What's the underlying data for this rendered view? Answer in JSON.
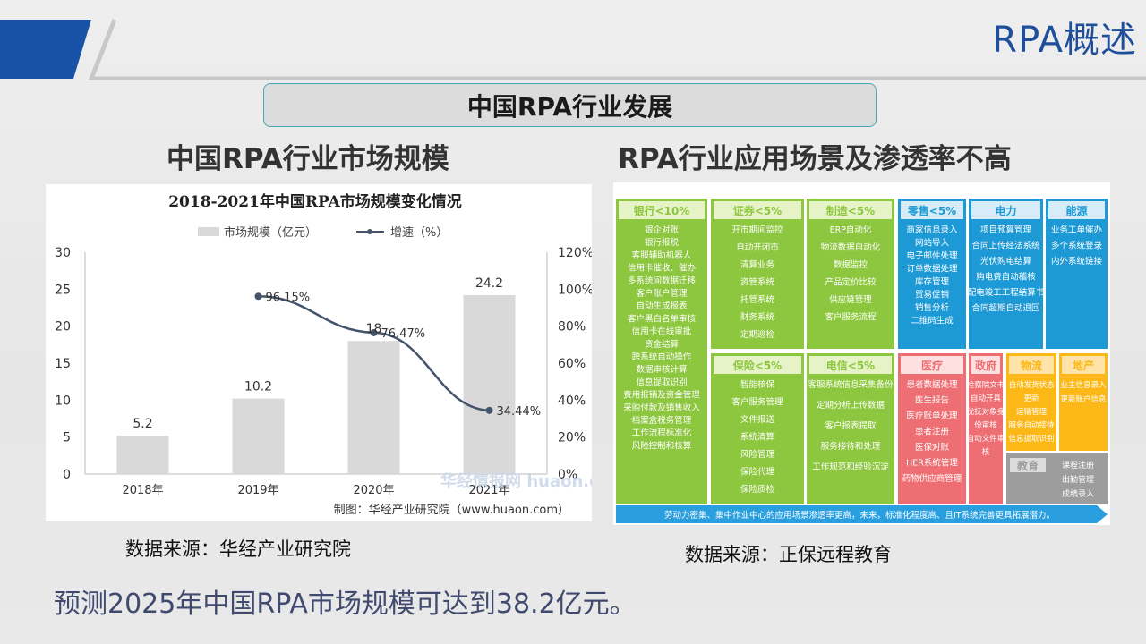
{
  "header": {
    "title": "RPA概述"
  },
  "section": {
    "label": "中国RPA行业发展"
  },
  "left": {
    "subtitle": "中国RPA行业市场规模",
    "source": "数据来源：华经产业研究院"
  },
  "right": {
    "subtitle": "RPA行业应用场景及渗透率不高",
    "source": "数据来源：正保远程教育"
  },
  "forecast": "预测2025年中国RPA市场规模可达到38.2亿元。",
  "chart_data": {
    "type": "bar",
    "title": "2018-2021年中国RPA市场规模变化情况",
    "categories": [
      "2018年",
      "2019年",
      "2020年",
      "2021年"
    ],
    "series": [
      {
        "name": "市场规模（亿元）",
        "type": "bar",
        "values": [
          5.2,
          10.2,
          18,
          24.2
        ],
        "labels": [
          "5.2",
          "10.2",
          "18",
          "24.2"
        ]
      },
      {
        "name": "增速（%）",
        "type": "line",
        "axis": "right",
        "values": [
          null,
          96.15,
          76.47,
          34.44
        ],
        "labels": [
          "",
          "96.15%",
          "76.47%",
          "34.44%"
        ]
      }
    ],
    "ylim": [
      0,
      30
    ],
    "yticks": [
      "0",
      "5",
      "10",
      "15",
      "20",
      "25",
      "30"
    ],
    "y2lim": [
      0,
      120
    ],
    "y2ticks": [
      "0%",
      "20%",
      "40%",
      "60%",
      "80%",
      "100%",
      "120%"
    ],
    "legend_position": "top-center",
    "credit": "制图：华经产业研究院（www.huaon.com）",
    "watermark": "华经情报网 huaon.com",
    "colors": {
      "bar": "#d9d9d9",
      "line": "#44546a"
    }
  },
  "scenarios": {
    "columns": [
      {
        "header": "银行<10%",
        "items": [
          "银企对账",
          "银行报税",
          "客服辅助机器人",
          "信用卡催收、催办",
          "多系统间数据迁移",
          "客户账户管理",
          "自动生成报表",
          "客户黑白名单审核",
          "信用卡在线审批",
          "资金结算",
          "跨系统自动操作",
          "数据审核计算",
          "信息提取识别",
          "费用报销及资金管理",
          "采购付款及销售收入",
          "档案盒税务管理",
          "工作流程标准化",
          "风险控制和核算"
        ]
      },
      {
        "header": "证券<5%",
        "items": [
          "开市期间监控",
          "自动开闭市",
          "清算业务",
          "资管系统",
          "托管系统",
          "财务系统",
          "定期巡检"
        ]
      },
      {
        "header": "制造<5%",
        "items": [
          "ERP自动化",
          "物流数据自动化",
          "数据监控",
          "产品定价比较",
          "供应链管理",
          "客户服务流程"
        ]
      },
      {
        "header": "保险<5%",
        "items": [
          "智能核保",
          "客户服务管理",
          "文件报送",
          "系统清算",
          "风险管理",
          "保险代理",
          "保险质检"
        ]
      },
      {
        "header": "电信<5%",
        "items": [
          "客服系统信息采集备份",
          "定期分析上传数据",
          "客户报表提取",
          "服务接待和处理",
          "工作规范和经验沉淀"
        ]
      },
      {
        "header": "零售<5%",
        "items": [
          "商家信息录入",
          "网站导入",
          "电子邮件处理",
          "订单数据处理",
          "库存管理",
          "贸易促销",
          "销售分析",
          "二维码生成"
        ]
      },
      {
        "header": "电力",
        "items": [
          "项目预算管理",
          "合同上传经法系统",
          "光伏购电结算",
          "购电费自动稽核",
          "配电竣工工程结算书",
          "合同超期自动退回"
        ]
      },
      {
        "header": "能源",
        "items": [
          "业务工单催办",
          "多个系统登录",
          "内外系统链接"
        ]
      },
      {
        "header": "医疗",
        "items": [
          "患者数据处理",
          "医生报告",
          "医疗账单处理",
          "患者注册",
          "医保对账",
          "HER系统管理",
          "药物供应商管理"
        ]
      },
      {
        "header": "政府",
        "items": [
          "检察院文书自动开具",
          "优抚对象身份审核",
          "自动文件审核"
        ]
      },
      {
        "header": "物流",
        "items": [
          "自动发货状态更新",
          "运输管理",
          "服务自动接待",
          "信息提取识别"
        ]
      },
      {
        "header": "地产",
        "items": [
          "业主信息录入",
          "更新账户信息"
        ]
      },
      {
        "header": "教育",
        "items": [
          "课程注册",
          "出勤管理",
          "成绩录入"
        ]
      }
    ],
    "footer": "劳动力密集、集中作业中心的应用场景渗透率更高，未来，标准化程度高、且IT系统完善更具拓展潜力。",
    "colors": {
      "green": "#8dc63f",
      "blue": "#1d9ad6",
      "red": "#ee6f73",
      "orange": "#fbb817",
      "gray": "#9d9d9d"
    }
  }
}
